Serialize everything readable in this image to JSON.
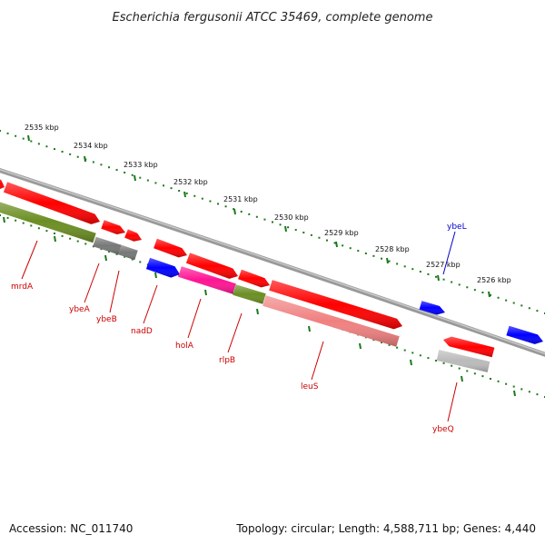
{
  "title": "Escherichia fergusonii ATCC 35469, complete genome",
  "accession": "Accession: NC_011740",
  "summary": "Topology: circular; Length: 4,588,711 bp; Genes: 4,440",
  "ruler_labels": [
    "2535 kbp",
    "2534 kbp",
    "2533 kbp",
    "2532 kbp",
    "2531 kbp",
    "2530 kbp",
    "2529 kbp",
    "2528 kbp",
    "2527 kbp",
    "2526 kbp"
  ],
  "colors": {
    "gene": "#ff0000",
    "rna": "#0000ff",
    "olive": "#6b8e23",
    "gray": "#777777",
    "magenta": "#ff1493",
    "pink": "#f08080",
    "lightgray": "#bbbbbb",
    "backbone": "#888888",
    "ruler": "#1a7a1a",
    "label_red": "#cc0000",
    "label_blue": "#0000cc"
  },
  "genes": [
    {
      "name": "mrdA",
      "label_color": "red"
    },
    {
      "name": "ybeA",
      "label_color": "red"
    },
    {
      "name": "ybeB",
      "label_color": "red"
    },
    {
      "name": "nadD",
      "label_color": "red"
    },
    {
      "name": "holA",
      "label_color": "red"
    },
    {
      "name": "rlpB",
      "label_color": "red"
    },
    {
      "name": "leuS",
      "label_color": "red"
    },
    {
      "name": "ybeQ",
      "label_color": "red"
    },
    {
      "name": "ybeL",
      "label_color": "blue"
    }
  ]
}
